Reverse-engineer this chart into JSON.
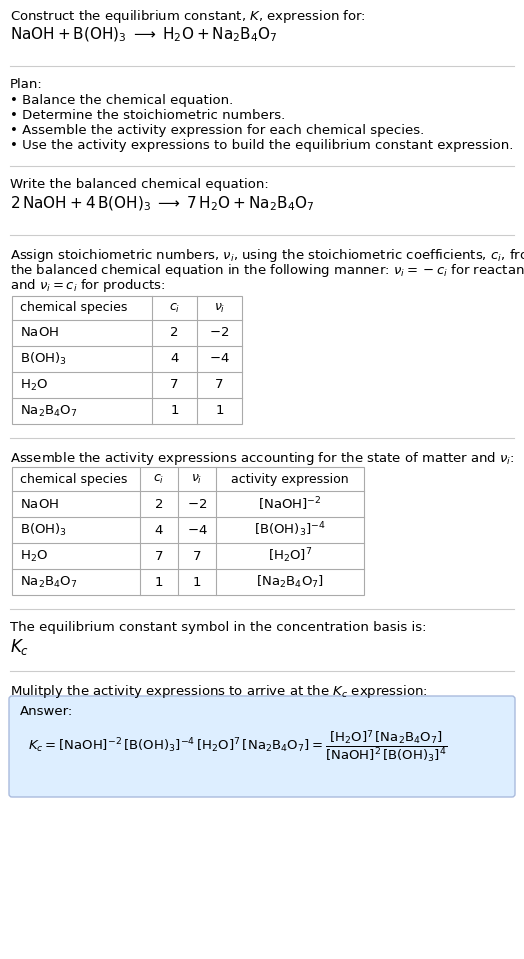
{
  "bg_color": "#ffffff",
  "text_color": "#000000",
  "title_line1": "Construct the equilibrium constant, $K$, expression for:",
  "title_line2": "$\\mathrm{NaOH} + \\mathrm{B(OH)_3} \\;\\longrightarrow\\; \\mathrm{H_2O} + \\mathrm{Na_2B_4O_7}$",
  "plan_header": "Plan:",
  "balanced_header": "Write the balanced chemical equation:",
  "balanced_eq": "$2\\,\\mathrm{NaOH} + 4\\,\\mathrm{B(OH)_3} \\;\\longrightarrow\\; 7\\,\\mathrm{H_2O} + \\mathrm{Na_2B_4O_7}$",
  "stoich_para": "Assign stoichiometric numbers, $\\nu_i$, using the stoichiometric coefficients, $c_i$, from\nthe balanced chemical equation in the following manner: $\\nu_i = -c_i$ for reactants\nand $\\nu_i = c_i$ for products:",
  "table1_col0": "chemical species",
  "table1_col1": "$c_i$",
  "table1_col2": "$\\nu_i$",
  "table1_rows": [
    [
      "$\\mathrm{NaOH}$",
      "2",
      "$-2$"
    ],
    [
      "$\\mathrm{B(OH)_3}$",
      "4",
      "$-4$"
    ],
    [
      "$\\mathrm{H_2O}$",
      "7",
      "7"
    ],
    [
      "$\\mathrm{Na_2B_4O_7}$",
      "1",
      "1"
    ]
  ],
  "activity_header": "Assemble the activity expressions accounting for the state of matter and $\\nu_i$:",
  "table2_col0": "chemical species",
  "table2_col1": "$c_i$",
  "table2_col2": "$\\nu_i$",
  "table2_col3": "activity expression",
  "table2_rows": [
    [
      "$\\mathrm{NaOH}$",
      "2",
      "$-2$",
      "$[\\mathrm{NaOH}]^{-2}$"
    ],
    [
      "$\\mathrm{B(OH)_3}$",
      "4",
      "$-4$",
      "$[\\mathrm{B(OH)_3}]^{-4}$"
    ],
    [
      "$\\mathrm{H_2O}$",
      "7",
      "7",
      "$[\\mathrm{H_2O}]^{7}$"
    ],
    [
      "$\\mathrm{Na_2B_4O_7}$",
      "1",
      "1",
      "$[\\mathrm{Na_2B_4O_7}]$"
    ]
  ],
  "kc_header": "The equilibrium constant symbol in the concentration basis is:",
  "kc_symbol": "$K_c$",
  "multiply_header": "Mulitply the activity expressions to arrive at the $K_c$ expression:",
  "answer_label": "Answer:",
  "answer_eq": "$K_c = [\\mathrm{NaOH}]^{-2}\\,[\\mathrm{B(OH)_3}]^{-4}\\,[\\mathrm{H_2O}]^{7}\\,[\\mathrm{Na_2B_4O_7}] = \\dfrac{[\\mathrm{H_2O}]^{7}\\,[\\mathrm{Na_2B_4O_7}]}{[\\mathrm{NaOH}]^{2}\\,[\\mathrm{B(OH)_3}]^{4}}$",
  "separator_color": "#cccccc",
  "table_line_color": "#aaaaaa",
  "answer_box_bg": "#ddeeff",
  "answer_box_edge": "#aabbdd",
  "plan_items": [
    "\\bullet  Balance the chemical equation.",
    "\\bullet  Determine the stoichiometric numbers.",
    "\\bullet  Assemble the activity expression for each chemical species.",
    "\\bullet  Use the activity expressions to build the equilibrium constant expression."
  ],
  "fs": 9.5,
  "fs_eq": 11,
  "fs_kc": 12
}
